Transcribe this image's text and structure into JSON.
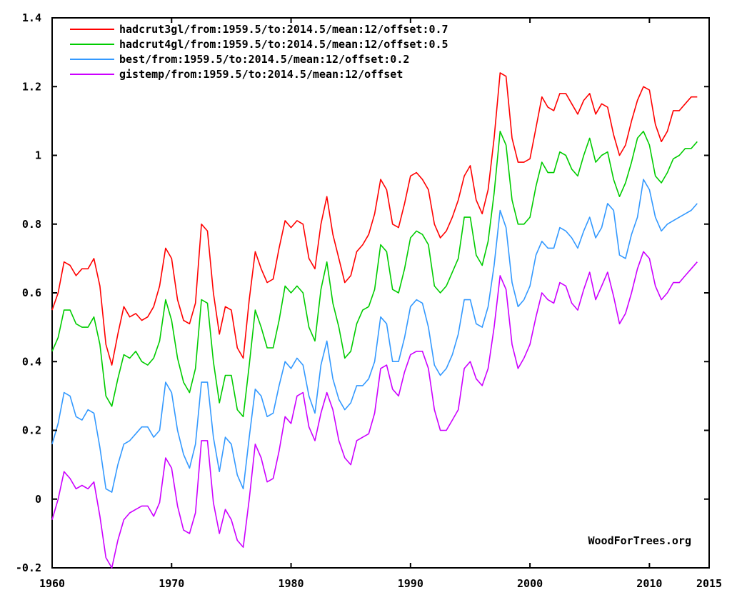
{
  "chart_data": {
    "type": "line",
    "title": "",
    "xlabel": "",
    "ylabel": "",
    "xlim": [
      1960,
      2015
    ],
    "ylim": [
      -0.2,
      1.4
    ],
    "grid": false,
    "legend_position": "top-left",
    "x_ticks": [
      "1960",
      "1970",
      "1980",
      "1990",
      "2000",
      "2010",
      "2015"
    ],
    "x_tick_values": [
      1960,
      1970,
      1980,
      1990,
      2000,
      2010,
      2015
    ],
    "y_ticks": [
      "-0.2",
      "0",
      "0.2",
      "0.4",
      "0.6",
      "0.8",
      "1",
      "1.2",
      "1.4"
    ],
    "y_tick_values": [
      -0.2,
      0,
      0.2,
      0.4,
      0.6,
      0.8,
      1.0,
      1.2,
      1.4
    ],
    "credit": "WoodForTrees.org",
    "series": [
      {
        "name": "hadcrut3gl/from:1959.5/to:2014.5/mean:12/offset:0.7",
        "color": "#ff0000",
        "x": [
          1960.0,
          1960.5,
          1961.0,
          1961.5,
          1962.0,
          1962.5,
          1963.0,
          1963.5,
          1964.0,
          1964.5,
          1965.0,
          1965.5,
          1966.0,
          1966.5,
          1967.0,
          1967.5,
          1968.0,
          1968.5,
          1969.0,
          1969.5,
          1970.0,
          1970.5,
          1971.0,
          1971.5,
          1972.0,
          1972.5,
          1973.0,
          1973.5,
          1974.0,
          1974.5,
          1975.0,
          1975.5,
          1976.0,
          1976.5,
          1977.0,
          1977.5,
          1978.0,
          1978.5,
          1979.0,
          1979.5,
          1980.0,
          1980.5,
          1981.0,
          1981.5,
          1982.0,
          1982.5,
          1983.0,
          1983.5,
          1984.0,
          1984.5,
          1985.0,
          1985.5,
          1986.0,
          1986.5,
          1987.0,
          1987.5,
          1988.0,
          1988.5,
          1989.0,
          1989.5,
          1990.0,
          1990.5,
          1991.0,
          1991.5,
          1992.0,
          1992.5,
          1993.0,
          1993.5,
          1994.0,
          1994.5,
          1995.0,
          1995.5,
          1996.0,
          1996.5,
          1997.0,
          1997.5,
          1998.0,
          1998.5,
          1999.0,
          1999.5,
          2000.0,
          2000.5,
          2001.0,
          2001.5,
          2002.0,
          2002.5,
          2003.0,
          2003.5,
          2004.0,
          2004.5,
          2005.0,
          2005.5,
          2006.0,
          2006.5,
          2007.0,
          2007.5,
          2008.0,
          2008.5,
          2009.0,
          2009.5,
          2010.0,
          2010.5,
          2011.0,
          2011.5,
          2012.0,
          2012.5,
          2013.0,
          2013.5,
          2014.0
        ],
        "values": [
          0.55,
          0.6,
          0.69,
          0.68,
          0.65,
          0.67,
          0.67,
          0.7,
          0.62,
          0.45,
          0.39,
          0.48,
          0.56,
          0.53,
          0.54,
          0.52,
          0.53,
          0.56,
          0.62,
          0.73,
          0.7,
          0.58,
          0.52,
          0.51,
          0.57,
          0.8,
          0.78,
          0.6,
          0.48,
          0.56,
          0.55,
          0.44,
          0.41,
          0.58,
          0.72,
          0.67,
          0.63,
          0.64,
          0.73,
          0.81,
          0.79,
          0.81,
          0.8,
          0.7,
          0.67,
          0.8,
          0.88,
          0.77,
          0.7,
          0.63,
          0.65,
          0.72,
          0.74,
          0.77,
          0.83,
          0.93,
          0.9,
          0.8,
          0.79,
          0.86,
          0.94,
          0.95,
          0.93,
          0.9,
          0.8,
          0.76,
          0.78,
          0.82,
          0.87,
          0.94,
          0.97,
          0.87,
          0.83,
          0.9,
          1.05,
          1.24,
          1.23,
          1.05,
          0.98,
          0.98,
          0.99,
          1.08,
          1.17,
          1.14,
          1.13,
          1.18,
          1.18,
          1.15,
          1.12,
          1.16,
          1.18,
          1.12,
          1.15,
          1.14,
          1.06,
          1.0,
          1.03,
          1.1,
          1.16,
          1.2,
          1.19,
          1.09,
          1.04,
          1.07,
          1.13,
          1.13,
          1.15,
          1.17,
          1.17
        ]
      },
      {
        "name": "hadcrut4gl/from:1959.5/to:2014.5/mean:12/offset:0.5",
        "color": "#00cc00",
        "x": [
          1960.0,
          1960.5,
          1961.0,
          1961.5,
          1962.0,
          1962.5,
          1963.0,
          1963.5,
          1964.0,
          1964.5,
          1965.0,
          1965.5,
          1966.0,
          1966.5,
          1967.0,
          1967.5,
          1968.0,
          1968.5,
          1969.0,
          1969.5,
          1970.0,
          1970.5,
          1971.0,
          1971.5,
          1972.0,
          1972.5,
          1973.0,
          1973.5,
          1974.0,
          1974.5,
          1975.0,
          1975.5,
          1976.0,
          1976.5,
          1977.0,
          1977.5,
          1978.0,
          1978.5,
          1979.0,
          1979.5,
          1980.0,
          1980.5,
          1981.0,
          1981.5,
          1982.0,
          1982.5,
          1983.0,
          1983.5,
          1984.0,
          1984.5,
          1985.0,
          1985.5,
          1986.0,
          1986.5,
          1987.0,
          1987.5,
          1988.0,
          1988.5,
          1989.0,
          1989.5,
          1990.0,
          1990.5,
          1991.0,
          1991.5,
          1992.0,
          1992.5,
          1993.0,
          1993.5,
          1994.0,
          1994.5,
          1995.0,
          1995.5,
          1996.0,
          1996.5,
          1997.0,
          1997.5,
          1998.0,
          1998.5,
          1999.0,
          1999.5,
          2000.0,
          2000.5,
          2001.0,
          2001.5,
          2002.0,
          2002.5,
          2003.0,
          2003.5,
          2004.0,
          2004.5,
          2005.0,
          2005.5,
          2006.0,
          2006.5,
          2007.0,
          2007.5,
          2008.0,
          2008.5,
          2009.0,
          2009.5,
          2010.0,
          2010.5,
          2011.0,
          2011.5,
          2012.0,
          2012.5,
          2013.0,
          2013.5,
          2014.0
        ],
        "values": [
          0.43,
          0.47,
          0.55,
          0.55,
          0.51,
          0.5,
          0.5,
          0.53,
          0.45,
          0.3,
          0.27,
          0.35,
          0.42,
          0.41,
          0.43,
          0.4,
          0.39,
          0.41,
          0.46,
          0.58,
          0.52,
          0.41,
          0.34,
          0.31,
          0.38,
          0.58,
          0.57,
          0.4,
          0.28,
          0.36,
          0.36,
          0.26,
          0.24,
          0.39,
          0.55,
          0.5,
          0.44,
          0.44,
          0.52,
          0.62,
          0.6,
          0.62,
          0.6,
          0.5,
          0.46,
          0.61,
          0.69,
          0.57,
          0.5,
          0.41,
          0.43,
          0.51,
          0.55,
          0.56,
          0.61,
          0.74,
          0.72,
          0.61,
          0.6,
          0.67,
          0.76,
          0.78,
          0.77,
          0.74,
          0.62,
          0.6,
          0.62,
          0.66,
          0.7,
          0.82,
          0.82,
          0.71,
          0.68,
          0.75,
          0.89,
          1.07,
          1.03,
          0.87,
          0.8,
          0.8,
          0.82,
          0.91,
          0.98,
          0.95,
          0.95,
          1.01,
          1.0,
          0.96,
          0.94,
          1.0,
          1.05,
          0.98,
          1.0,
          1.01,
          0.93,
          0.88,
          0.92,
          0.98,
          1.05,
          1.07,
          1.03,
          0.94,
          0.92,
          0.95,
          0.99,
          1.0,
          1.02,
          1.02,
          1.04
        ]
      },
      {
        "name": "best/from:1959.5/to:2014.5/mean:12/offset:0.2",
        "color": "#3399ff",
        "x": [
          1960.0,
          1960.5,
          1961.0,
          1961.5,
          1962.0,
          1962.5,
          1963.0,
          1963.5,
          1964.0,
          1964.5,
          1965.0,
          1965.5,
          1966.0,
          1966.5,
          1967.0,
          1967.5,
          1968.0,
          1968.5,
          1969.0,
          1969.5,
          1970.0,
          1970.5,
          1971.0,
          1971.5,
          1972.0,
          1972.5,
          1973.0,
          1973.5,
          1974.0,
          1974.5,
          1975.0,
          1975.5,
          1976.0,
          1976.5,
          1977.0,
          1977.5,
          1978.0,
          1978.5,
          1979.0,
          1979.5,
          1980.0,
          1980.5,
          1981.0,
          1981.5,
          1982.0,
          1982.5,
          1983.0,
          1983.5,
          1984.0,
          1984.5,
          1985.0,
          1985.5,
          1986.0,
          1986.5,
          1987.0,
          1987.5,
          1988.0,
          1988.5,
          1989.0,
          1989.5,
          1990.0,
          1990.5,
          1991.0,
          1991.5,
          1992.0,
          1992.5,
          1993.0,
          1993.5,
          1994.0,
          1994.5,
          1995.0,
          1995.5,
          1996.0,
          1996.5,
          1997.0,
          1997.5,
          1998.0,
          1998.5,
          1999.0,
          1999.5,
          2000.0,
          2000.5,
          2001.0,
          2001.5,
          2002.0,
          2002.5,
          2003.0,
          2003.5,
          2004.0,
          2004.5,
          2005.0,
          2005.5,
          2006.0,
          2006.5,
          2007.0,
          2007.5,
          2008.0,
          2008.5,
          2009.0,
          2009.5,
          2010.0,
          2010.5,
          2011.0,
          2011.5,
          2012.0,
          2012.5,
          2013.0,
          2013.5,
          2014.0
        ],
        "values": [
          0.16,
          0.22,
          0.31,
          0.3,
          0.24,
          0.23,
          0.26,
          0.25,
          0.15,
          0.03,
          0.02,
          0.1,
          0.16,
          0.17,
          0.19,
          0.21,
          0.21,
          0.18,
          0.2,
          0.34,
          0.31,
          0.2,
          0.13,
          0.09,
          0.16,
          0.34,
          0.34,
          0.18,
          0.08,
          0.18,
          0.16,
          0.07,
          0.03,
          0.18,
          0.32,
          0.3,
          0.24,
          0.25,
          0.33,
          0.4,
          0.38,
          0.41,
          0.39,
          0.3,
          0.25,
          0.39,
          0.46,
          0.35,
          0.29,
          0.26,
          0.28,
          0.33,
          0.33,
          0.35,
          0.4,
          0.53,
          0.51,
          0.4,
          0.4,
          0.47,
          0.56,
          0.58,
          0.57,
          0.5,
          0.39,
          0.36,
          0.38,
          0.42,
          0.48,
          0.58,
          0.58,
          0.51,
          0.5,
          0.56,
          0.68,
          0.84,
          0.79,
          0.63,
          0.56,
          0.58,
          0.62,
          0.71,
          0.75,
          0.73,
          0.73,
          0.79,
          0.78,
          0.76,
          0.73,
          0.78,
          0.82,
          0.76,
          0.79,
          0.86,
          0.84,
          0.71,
          0.7,
          0.77,
          0.82,
          0.93,
          0.9,
          0.82,
          0.78,
          0.8,
          0.81,
          0.82,
          0.83,
          0.84,
          0.86
        ]
      },
      {
        "name": "gistemp/from:1959.5/to:2014.5/mean:12/offset",
        "color": "#cc00ff",
        "x": [
          1960.0,
          1960.5,
          1961.0,
          1961.5,
          1962.0,
          1962.5,
          1963.0,
          1963.5,
          1964.0,
          1964.5,
          1965.0,
          1965.5,
          1966.0,
          1966.5,
          1967.0,
          1967.5,
          1968.0,
          1968.5,
          1969.0,
          1969.5,
          1970.0,
          1970.5,
          1971.0,
          1971.5,
          1972.0,
          1972.5,
          1973.0,
          1973.5,
          1974.0,
          1974.5,
          1975.0,
          1975.5,
          1976.0,
          1976.5,
          1977.0,
          1977.5,
          1978.0,
          1978.5,
          1979.0,
          1979.5,
          1980.0,
          1980.5,
          1981.0,
          1981.5,
          1982.0,
          1982.5,
          1983.0,
          1983.5,
          1984.0,
          1984.5,
          1985.0,
          1985.5,
          1986.0,
          1986.5,
          1987.0,
          1987.5,
          1988.0,
          1988.5,
          1989.0,
          1989.5,
          1990.0,
          1990.5,
          1991.0,
          1991.5,
          1992.0,
          1992.5,
          1993.0,
          1993.5,
          1994.0,
          1994.5,
          1995.0,
          1995.5,
          1996.0,
          1996.5,
          1997.0,
          1997.5,
          1998.0,
          1998.5,
          1999.0,
          1999.5,
          2000.0,
          2000.5,
          2001.0,
          2001.5,
          2002.0,
          2002.5,
          2003.0,
          2003.5,
          2004.0,
          2004.5,
          2005.0,
          2005.5,
          2006.0,
          2006.5,
          2007.0,
          2007.5,
          2008.0,
          2008.5,
          2009.0,
          2009.5,
          2010.0,
          2010.5,
          2011.0,
          2011.5,
          2012.0,
          2012.5,
          2013.0,
          2013.5,
          2014.0
        ],
        "values": [
          -0.06,
          0.0,
          0.08,
          0.06,
          0.03,
          0.04,
          0.03,
          0.05,
          -0.05,
          -0.17,
          -0.2,
          -0.12,
          -0.06,
          -0.04,
          -0.03,
          -0.02,
          -0.02,
          -0.05,
          -0.01,
          0.12,
          0.09,
          -0.02,
          -0.09,
          -0.1,
          -0.04,
          0.17,
          0.17,
          -0.01,
          -0.1,
          -0.03,
          -0.06,
          -0.12,
          -0.14,
          0.0,
          0.16,
          0.12,
          0.05,
          0.06,
          0.14,
          0.24,
          0.22,
          0.3,
          0.31,
          0.21,
          0.17,
          0.25,
          0.31,
          0.26,
          0.17,
          0.12,
          0.1,
          0.17,
          0.18,
          0.19,
          0.25,
          0.38,
          0.39,
          0.32,
          0.3,
          0.37,
          0.42,
          0.43,
          0.43,
          0.38,
          0.26,
          0.2,
          0.2,
          0.23,
          0.26,
          0.38,
          0.4,
          0.35,
          0.33,
          0.38,
          0.5,
          0.65,
          0.61,
          0.45,
          0.38,
          0.41,
          0.45,
          0.53,
          0.6,
          0.58,
          0.57,
          0.63,
          0.62,
          0.57,
          0.55,
          0.61,
          0.66,
          0.58,
          0.62,
          0.66,
          0.59,
          0.51,
          0.54,
          0.6,
          0.67,
          0.72,
          0.7,
          0.62,
          0.58,
          0.6,
          0.63,
          0.63,
          0.65,
          0.67,
          0.69
        ]
      }
    ]
  }
}
